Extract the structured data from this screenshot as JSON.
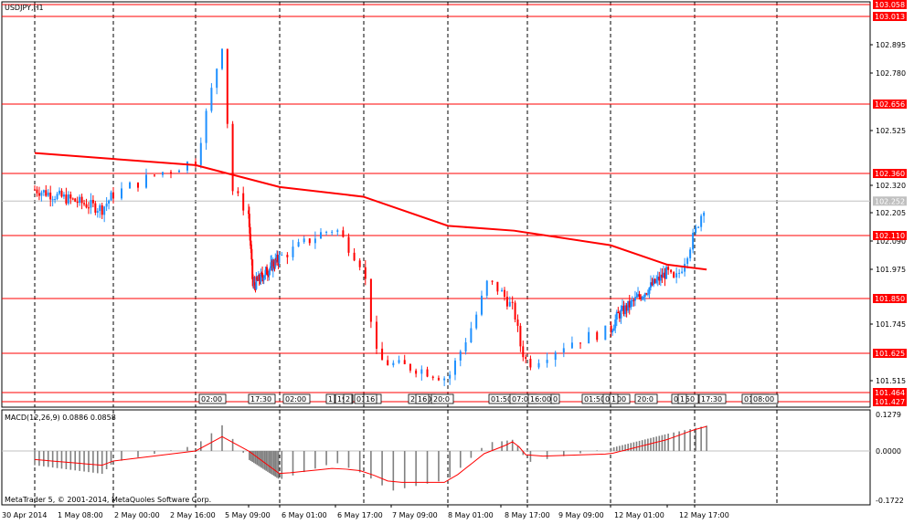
{
  "chart_title": "USDJPY,H1",
  "macd_title": "MACD(12,26,9) 0.0886 0.0858",
  "copyright": "MetaTrader 5, © 2001-2014, MetaQuoles Software Corp.",
  "colors": {
    "bull": "#1e90ff",
    "bear": "#ff0000",
    "grid": "#000000",
    "level": "#ff0000",
    "ma": "#ff0000",
    "label_bg": "#ff0000",
    "current_bg": "#c0c0c0",
    "histogram": "#808080",
    "signal": "#ff0000"
  },
  "chart_data": [
    {
      "type": "candlestick",
      "symbol": "USDJPY",
      "timeframe": "H1",
      "x": [
        "30 Apr 2014",
        "1 May 08:00",
        "2 May 00:00",
        "2 May 16:00",
        "5 May 09:00",
        "6 May 01:00",
        "6 May 17:00",
        "7 May 09:00",
        "8 May 01:00",
        "8 May 17:00",
        "9 May 09:00",
        "12 May 01:00",
        "12 May 17:00"
      ],
      "path_anchors": [
        [
          "30 Apr 2014",
          102.3
        ],
        [
          "1 May 00:00",
          102.22
        ],
        [
          "1 May 08:00",
          102.28
        ],
        [
          "1 May 16:00",
          102.36
        ],
        [
          "2 May 00:00",
          102.42
        ],
        [
          "2 May 08:00",
          102.9
        ],
        [
          "2 May 11:00",
          102.3
        ],
        [
          "2 May 16:00",
          102.2
        ],
        [
          "3 May 01:00",
          101.9
        ],
        [
          "5 May 09:00",
          102.02
        ],
        [
          "5 May 21:00",
          102.12
        ],
        [
          "6 May 01:00",
          102.14
        ],
        [
          "6 May 09:00",
          101.98
        ],
        [
          "6 May 13:00",
          101.6
        ],
        [
          "6 May 17:00",
          101.58
        ],
        [
          "7 May 01:00",
          101.56
        ],
        [
          "7 May 09:00",
          101.52
        ],
        [
          "7 May 17:00",
          101.76
        ],
        [
          "7 May 21:00",
          101.92
        ],
        [
          "8 May 01:00",
          101.88
        ],
        [
          "8 May 09:00",
          101.8
        ],
        [
          "8 May 13:00",
          101.65
        ],
        [
          "8 May 17:00",
          101.58
        ],
        [
          "9 May 01:00",
          101.67
        ],
        [
          "9 May 09:00",
          101.72
        ],
        [
          "9 May 17:00",
          101.78
        ],
        [
          "12 May 01:00",
          101.96
        ],
        [
          "12 May 05:00",
          101.92
        ],
        [
          "12 May 09:00",
          101.97
        ],
        [
          "12 May 17:00",
          102.12
        ],
        [
          "12 May 21:00",
          102.2
        ],
        [
          "13 May 00:00",
          102.262
        ]
      ],
      "moving_average": [
        [
          "30 Apr 2014",
          102.45
        ],
        [
          "2 May 00:00",
          102.4
        ],
        [
          "5 May 09:00",
          102.31
        ],
        [
          "6 May 09:00",
          102.27
        ],
        [
          "7 May 09:00",
          102.15
        ],
        [
          "8 May 09:00",
          102.13
        ],
        [
          "9 May 09:00",
          102.07
        ],
        [
          "12 May 01:00",
          101.99
        ],
        [
          "13 May 00:00",
          101.97
        ]
      ],
      "price_levels": [
        "103.058",
        "103.013",
        "102.656",
        "102.360",
        "102.110",
        "101.850",
        "101.625",
        "101.464",
        "101.427"
      ],
      "current_price": "102.252",
      "y_ticks": [
        "102.895",
        "102.780",
        "102.525",
        "102.320",
        "102.205",
        "102.090",
        "101.975",
        "101.745",
        "101.515"
      ],
      "session_markers": [
        "02:00",
        "17:30",
        "02:00",
        "1",
        "19:",
        "2",
        "01:50",
        "16",
        "21:00",
        "16",
        "20:0",
        "01:50",
        "07:00",
        "16:00",
        "0",
        "01:50",
        "07:00",
        "1",
        "20:0",
        "01:50",
        "1",
        "17:30",
        "01:50",
        "08:00"
      ],
      "ylim": [
        101.4,
        103.1
      ]
    },
    {
      "type": "bar",
      "name": "MACD(12,26,9)",
      "macd_value": 0.0886,
      "signal_value": 0.0858,
      "y_ticks": [
        "0.1279",
        "0.0000",
        "-0.1722"
      ],
      "ylim": [
        -0.18,
        0.135
      ],
      "macd_anchors": [
        [
          "30 Apr 2014",
          -0.05
        ],
        [
          "1 May 00:00",
          -0.08
        ],
        [
          "1 May 08:00",
          -0.04
        ],
        [
          "2 May 00:00",
          0.02
        ],
        [
          "2 May 08:00",
          0.09
        ],
        [
          "2 May 16:00",
          -0.03
        ],
        [
          "5 May 09:00",
          -0.1
        ],
        [
          "6 May 01:00",
          -0.04
        ],
        [
          "6 May 09:00",
          -0.08
        ],
        [
          "6 May 17:00",
          -0.14
        ],
        [
          "7 May 09:00",
          -0.1
        ],
        [
          "7 May 21:00",
          0.03
        ],
        [
          "8 May 09:00",
          0.04
        ],
        [
          "8 May 17:00",
          -0.04
        ],
        [
          "9 May 09:00",
          0.01
        ],
        [
          "12 May 01:00",
          0.06
        ],
        [
          "12 May 17:00",
          0.08
        ],
        [
          "13 May 00:00",
          0.0886
        ]
      ],
      "signal_anchors": [
        [
          "30 Apr 2014",
          -0.03
        ],
        [
          "1 May 00:00",
          -0.05
        ],
        [
          "1 May 08:00",
          -0.035
        ],
        [
          "2 May 00:00",
          0.0
        ],
        [
          "2 May 08:00",
          0.05
        ],
        [
          "2 May 16:00",
          0.0
        ],
        [
          "5 May 09:00",
          -0.08
        ],
        [
          "6 May 01:00",
          -0.06
        ],
        [
          "6 May 09:00",
          -0.07
        ],
        [
          "6 May 17:00",
          -0.11
        ],
        [
          "7 May 09:00",
          -0.11
        ],
        [
          "7 May 21:00",
          0.0
        ],
        [
          "8 May 09:00",
          0.035
        ],
        [
          "8 May 17:00",
          -0.02
        ],
        [
          "9 May 09:00",
          -0.01
        ],
        [
          "12 May 01:00",
          0.04
        ],
        [
          "12 May 17:00",
          0.075
        ],
        [
          "13 May 00:00",
          0.0858
        ]
      ]
    }
  ]
}
